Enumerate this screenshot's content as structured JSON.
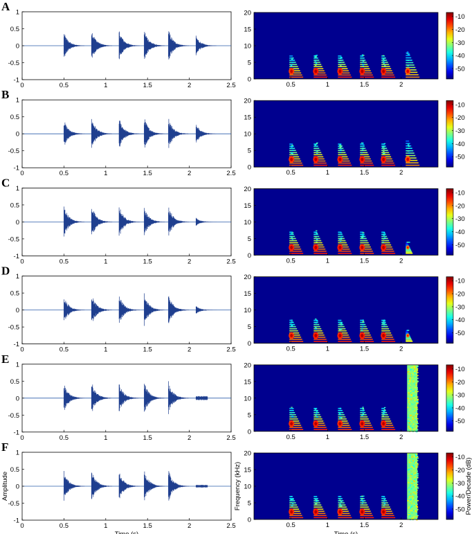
{
  "chart_data": {
    "type": "multi-panel waveform and spectrogram",
    "panels": [
      {
        "label": "A",
        "bursts": [
          {
            "t": 0.5,
            "amp": 0.4
          },
          {
            "t": 0.83,
            "amp": 0.5
          },
          {
            "t": 1.16,
            "amp": 0.48
          },
          {
            "t": 1.46,
            "amp": 0.5
          },
          {
            "t": 1.75,
            "amp": 0.5
          },
          {
            "t": 2.08,
            "amp": 0.3
          }
        ],
        "noise": null
      },
      {
        "label": "B",
        "bursts": [
          {
            "t": 0.5,
            "amp": 0.42
          },
          {
            "t": 0.83,
            "amp": 0.5
          },
          {
            "t": 1.16,
            "amp": 0.48
          },
          {
            "t": 1.46,
            "amp": 0.5
          },
          {
            "t": 1.75,
            "amp": 0.5
          },
          {
            "t": 2.08,
            "amp": 0.3
          }
        ],
        "noise": null
      },
      {
        "label": "C",
        "bursts": [
          {
            "t": 0.5,
            "amp": 0.5
          },
          {
            "t": 0.83,
            "amp": 0.5
          },
          {
            "t": 1.16,
            "amp": 0.5
          },
          {
            "t": 1.46,
            "amp": 0.45
          },
          {
            "t": 1.75,
            "amp": 0.5
          },
          {
            "t": 2.08,
            "amp": 0.12
          }
        ],
        "noise": null
      },
      {
        "label": "D",
        "bursts": [
          {
            "t": 0.5,
            "amp": 0.42
          },
          {
            "t": 0.83,
            "amp": 0.5
          },
          {
            "t": 1.16,
            "amp": 0.48
          },
          {
            "t": 1.46,
            "amp": 0.5
          },
          {
            "t": 1.75,
            "amp": 0.5
          },
          {
            "t": 2.08,
            "amp": 0.12
          }
        ],
        "noise": null
      },
      {
        "label": "E",
        "bursts": [
          {
            "t": 0.5,
            "amp": 0.45
          },
          {
            "t": 0.83,
            "amp": 0.5
          },
          {
            "t": 1.16,
            "amp": 0.45
          },
          {
            "t": 1.46,
            "amp": 0.5
          },
          {
            "t": 1.75,
            "amp": 0.5
          }
        ],
        "noise": {
          "t0": 2.08,
          "t1": 2.22,
          "amp": 0.06
        }
      },
      {
        "label": "F",
        "bursts": [
          {
            "t": 0.5,
            "amp": 0.45
          },
          {
            "t": 0.83,
            "amp": 0.5
          },
          {
            "t": 1.16,
            "amp": 0.45
          },
          {
            "t": 1.46,
            "amp": 0.5
          },
          {
            "t": 1.75,
            "amp": 0.5
          }
        ],
        "noise": {
          "t0": 2.08,
          "t1": 2.22,
          "amp": 0.04
        }
      }
    ],
    "waveform": {
      "xlim": [
        0,
        2.5
      ],
      "ylim": [
        -1,
        1
      ],
      "xticks": [
        "0",
        "0.5",
        "1",
        "1.5",
        "2",
        "2.5"
      ],
      "yticks": [
        "1",
        "0.5",
        "0",
        "-0.5",
        "-1"
      ],
      "xlabel": "Time (s)",
      "ylabel": "Amplitude"
    },
    "spectrogram": {
      "xlim": [
        0,
        2.5
      ],
      "ylim": [
        0,
        20
      ],
      "xticks": [
        "0.5",
        "1",
        "1.5",
        "2"
      ],
      "yticks": [
        "20",
        "15",
        "10",
        "5",
        "0"
      ],
      "xlabel": "Time (s)",
      "ylabel": "Frequency (kHz)"
    },
    "colorbar": {
      "ticks": [
        "-10",
        "-20",
        "-30",
        "-40",
        "-50"
      ],
      "range_db": [
        -58,
        -7
      ],
      "label": "Power/Decade (dB)"
    }
  }
}
